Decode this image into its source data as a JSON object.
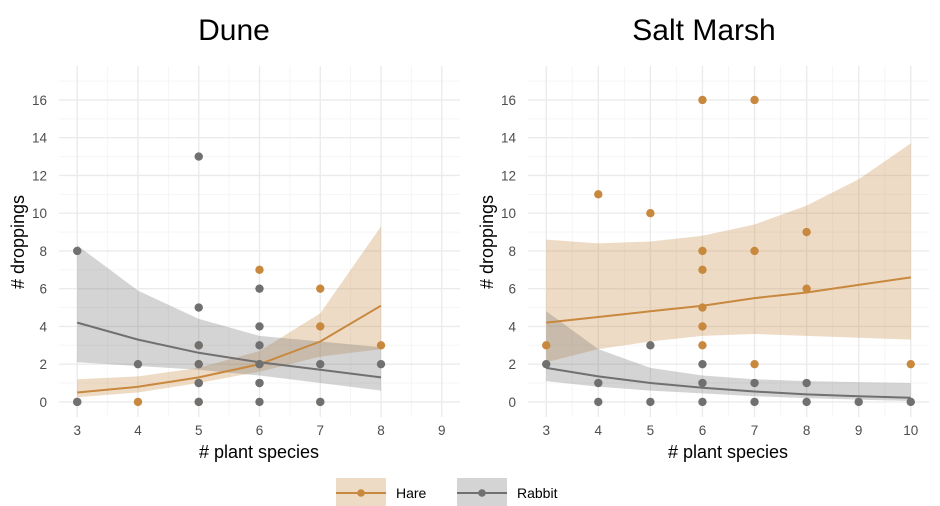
{
  "colors": {
    "Hare": "#C8883E",
    "Rabbit": "#707070",
    "grid_major": "#EBEBEB",
    "grid_minor": "#F5F5F5"
  },
  "legend": {
    "position": "bottom",
    "items": [
      {
        "series": "Hare",
        "label": "Hare"
      },
      {
        "series": "Rabbit",
        "label": "Rabbit"
      }
    ]
  },
  "chart_data": [
    {
      "type": "scatter",
      "title": "Dune",
      "xlabel": "# plant species",
      "ylabel": "# droppings",
      "xlim": [
        2.7,
        9.3
      ],
      "ylim": [
        -0.8,
        17.8
      ],
      "xticks": [
        3,
        4,
        5,
        6,
        7,
        8,
        9
      ],
      "yticks": [
        0,
        2,
        4,
        6,
        8,
        10,
        12,
        14,
        16
      ],
      "grid": true,
      "series": [
        {
          "name": "Hare",
          "points": [
            [
              3,
              0
            ],
            [
              4,
              0
            ],
            [
              5,
              0
            ],
            [
              5,
              1
            ],
            [
              5,
              2
            ],
            [
              5,
              3
            ],
            [
              6,
              1
            ],
            [
              6,
              2
            ],
            [
              6,
              7
            ],
            [
              7,
              0
            ],
            [
              7,
              4
            ],
            [
              7,
              6
            ],
            [
              8,
              3
            ]
          ],
          "fit": {
            "x": [
              3,
              4,
              5,
              6,
              7,
              8
            ],
            "y": [
              0.5,
              0.8,
              1.3,
              2.0,
              3.2,
              5.1
            ],
            "lower": [
              0.25,
              0.5,
              1.0,
              1.6,
              2.4,
              2.8
            ],
            "upper": [
              1.2,
              1.35,
              1.8,
              2.7,
              4.7,
              9.3
            ]
          }
        },
        {
          "name": "Rabbit",
          "points": [
            [
              3,
              0
            ],
            [
              3,
              8
            ],
            [
              4,
              2
            ],
            [
              5,
              0
            ],
            [
              5,
              1
            ],
            [
              5,
              2
            ],
            [
              5,
              3
            ],
            [
              5,
              5
            ],
            [
              5,
              13
            ],
            [
              6,
              0
            ],
            [
              6,
              1
            ],
            [
              6,
              2
            ],
            [
              6,
              3
            ],
            [
              6,
              4
            ],
            [
              6,
              6
            ],
            [
              7,
              0
            ],
            [
              7,
              2
            ],
            [
              8,
              2
            ]
          ],
          "fit": {
            "x": [
              3,
              4,
              5,
              6,
              7,
              8
            ],
            "y": [
              4.2,
              3.3,
              2.6,
              2.1,
              1.7,
              1.3
            ],
            "lower": [
              2.1,
              1.9,
              1.7,
              1.4,
              1.0,
              0.6
            ],
            "upper": [
              8.3,
              5.9,
              4.4,
              3.5,
              3.2,
              2.9
            ]
          }
        }
      ]
    },
    {
      "type": "scatter",
      "title": "Salt Marsh",
      "xlabel": "# plant species",
      "ylabel": "# droppings",
      "xlim": [
        2.65,
        10.35
      ],
      "ylim": [
        -0.8,
        17.8
      ],
      "xticks": [
        3,
        4,
        5,
        6,
        7,
        8,
        9,
        10
      ],
      "yticks": [
        0,
        2,
        4,
        6,
        8,
        10,
        12,
        14,
        16
      ],
      "grid": true,
      "series": [
        {
          "name": "Hare",
          "points": [
            [
              3,
              3
            ],
            [
              4,
              11
            ],
            [
              5,
              10
            ],
            [
              6,
              3
            ],
            [
              6,
              4
            ],
            [
              6,
              5
            ],
            [
              6,
              7
            ],
            [
              6,
              8
            ],
            [
              6,
              16
            ],
            [
              7,
              2
            ],
            [
              7,
              8
            ],
            [
              7,
              16
            ],
            [
              8,
              6
            ],
            [
              8,
              9
            ],
            [
              10,
              2
            ]
          ],
          "fit": {
            "x": [
              3,
              4,
              5,
              6,
              7,
              8,
              9,
              10
            ],
            "y": [
              4.2,
              4.5,
              4.8,
              5.1,
              5.5,
              5.8,
              6.2,
              6.6
            ],
            "lower": [
              2.1,
              2.8,
              3.2,
              3.5,
              3.6,
              3.5,
              3.4,
              3.3
            ],
            "upper": [
              8.6,
              8.4,
              8.5,
              8.8,
              9.4,
              10.4,
              11.8,
              13.7
            ]
          }
        },
        {
          "name": "Rabbit",
          "points": [
            [
              3,
              2
            ],
            [
              4,
              0
            ],
            [
              4,
              1
            ],
            [
              5,
              0
            ],
            [
              5,
              3
            ],
            [
              6,
              0
            ],
            [
              6,
              1
            ],
            [
              6,
              2
            ],
            [
              7,
              0
            ],
            [
              7,
              1
            ],
            [
              8,
              0
            ],
            [
              8,
              1
            ],
            [
              9,
              0
            ],
            [
              10,
              0
            ]
          ],
          "fit": {
            "x": [
              3,
              4,
              5,
              6,
              7,
              8,
              9,
              10
            ],
            "y": [
              1.8,
              1.35,
              1.0,
              0.75,
              0.55,
              0.4,
              0.3,
              0.22
            ],
            "lower": [
              1.1,
              0.8,
              0.6,
              0.45,
              0.3,
              0.2,
              0.12,
              0.05
            ],
            "upper": [
              4.8,
              2.8,
              1.8,
              1.4,
              1.2,
              1.1,
              1.05,
              1.0
            ]
          }
        }
      ]
    }
  ]
}
